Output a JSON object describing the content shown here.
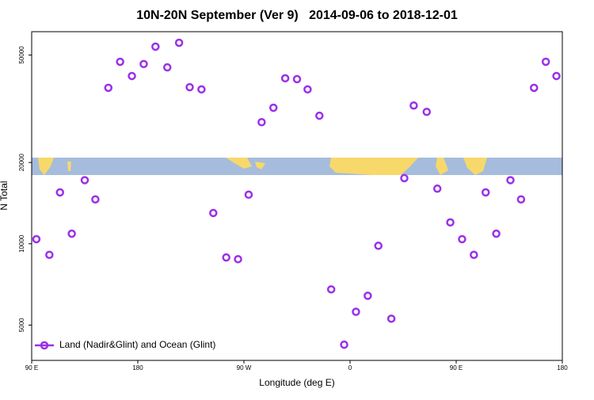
{
  "chart_data": {
    "type": "scatter",
    "title": "10N-20N September (Ver 9)   2014-09-06 to 2018-12-01",
    "x_label": "Longitude (deg E)",
    "y_label": "N Total",
    "log_y": true,
    "legend_position": "bottom-left",
    "xlim": [
      90,
      540
    ],
    "xticks": [
      {
        "value": 90,
        "label": "90 E"
      },
      180,
      {
        "value": 270,
        "label": "90 W"
      },
      {
        "value": 360,
        "label": "0"
      },
      {
        "value": 450,
        "label": "90 E"
      },
      {
        "value": 540,
        "label": "180"
      }
    ],
    "ylim": [
      3700,
      61000
    ],
    "yticks": [
      5000,
      10000,
      20000,
      50000
    ],
    "series": [
      {
        "name": "Land (Nadir&Glint) and Ocean (Glint)",
        "color": "#9b30e8",
        "x": [
          94,
          105,
          114,
          124,
          135,
          144,
          155,
          165,
          175,
          185,
          195,
          205,
          215,
          224,
          234,
          244,
          255,
          265,
          274,
          285,
          295,
          305,
          315,
          324,
          334,
          344,
          355,
          365,
          375,
          384,
          395,
          406,
          414,
          425,
          434,
          445,
          455,
          465,
          475,
          484,
          496,
          505,
          516,
          526,
          535
        ],
        "values": [
          10400,
          9100,
          15500,
          10900,
          17200,
          14600,
          37800,
          47200,
          41800,
          46300,
          53700,
          45000,
          55500,
          38000,
          37300,
          13000,
          8900,
          8770,
          15200,
          28200,
          31900,
          41000,
          40700,
          37300,
          29800,
          6780,
          4230,
          5600,
          6420,
          9830,
          5280,
          17500,
          32500,
          30800,
          16000,
          12000,
          10400,
          9100,
          15500,
          10900,
          17200,
          14600,
          37800,
          47200,
          41800
        ]
      }
    ]
  }
}
